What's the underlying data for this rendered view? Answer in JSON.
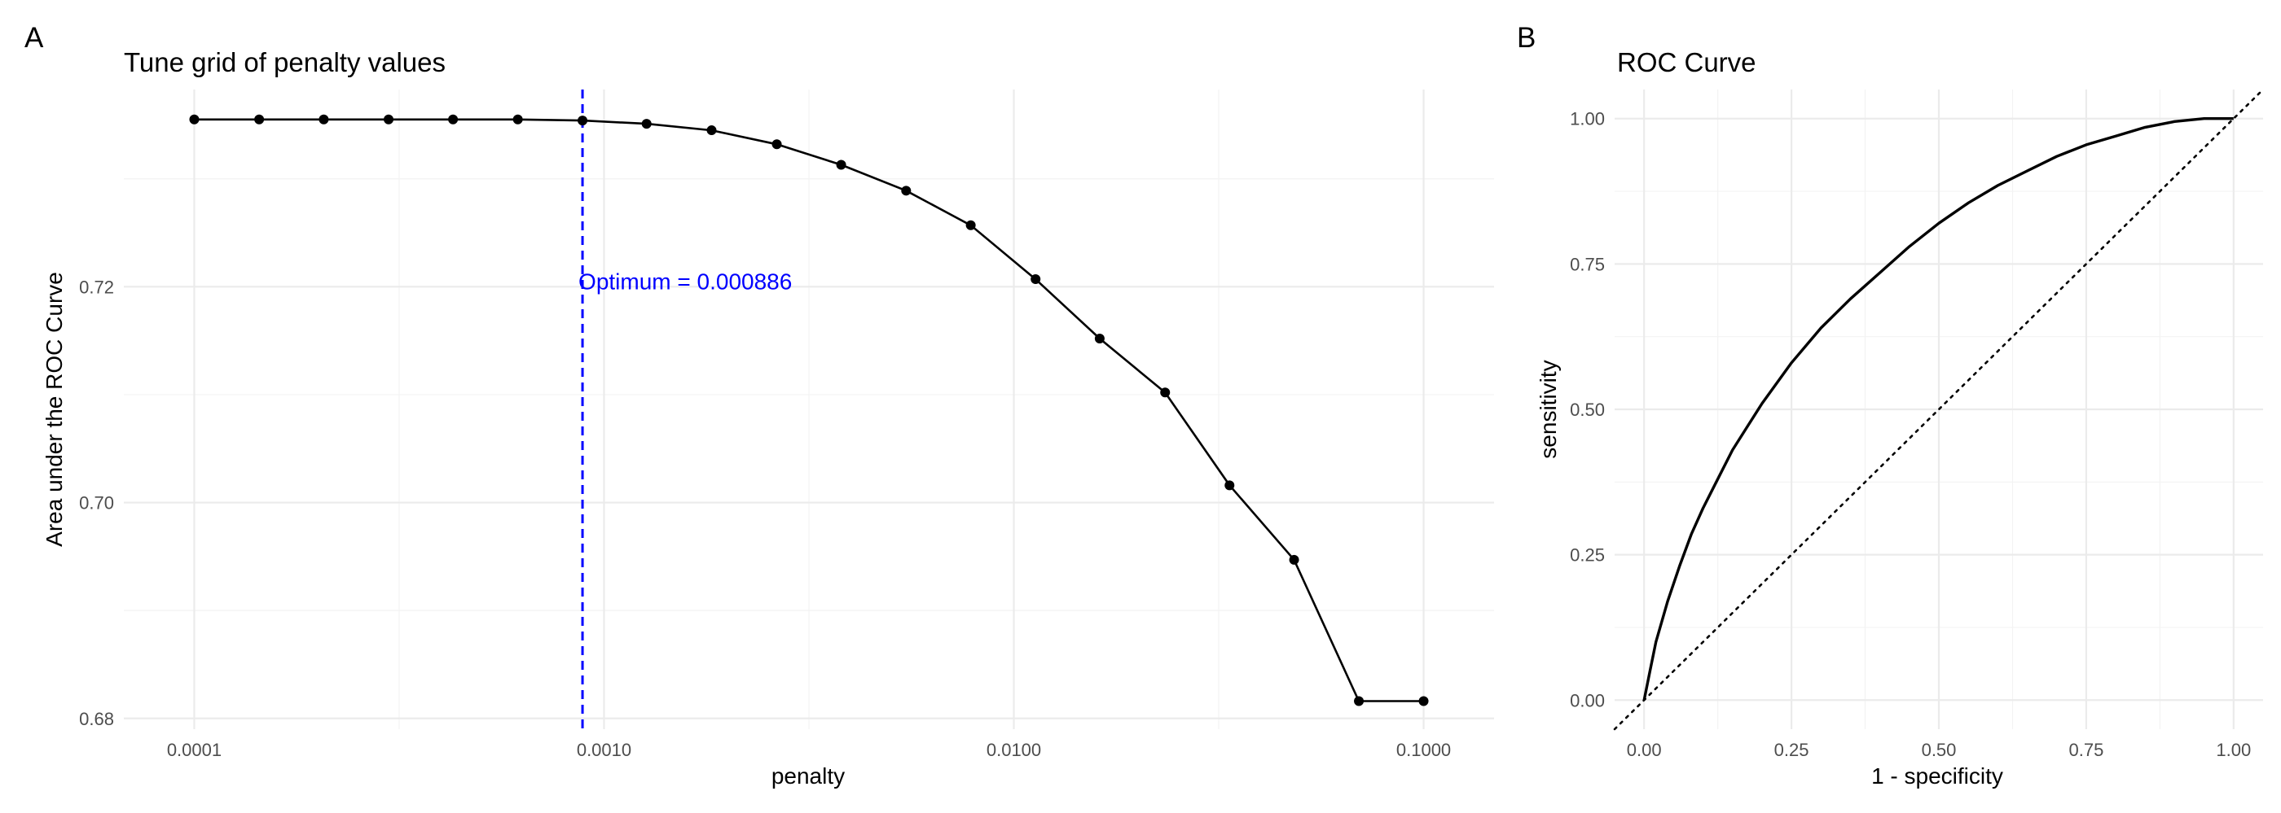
{
  "chart_data": [
    {
      "type": "line",
      "panel_tag": "A",
      "title": "Tune grid of penalty values",
      "xlabel": "penalty",
      "ylabel": "Area under the ROC Curve",
      "x_scale": "log10",
      "xlim": [
        0.0001,
        0.1
      ],
      "ylim": [
        0.68,
        0.7355
      ],
      "x_ticks": [
        0.0001,
        0.001,
        0.01,
        0.1
      ],
      "x_tick_labels": [
        "0.0001",
        "0.0010",
        "0.0100",
        "0.1000"
      ],
      "y_ticks": [
        0.68,
        0.7,
        0.72
      ],
      "y_tick_labels": [
        "0.68",
        "0.70",
        "0.72"
      ],
      "grid": true,
      "series": [
        {
          "x": [
            0.0001,
            0.000144,
            0.000207,
            0.000298,
            0.000428,
            0.000616,
            0.000886,
            0.00127,
            0.00183,
            0.00264,
            0.00379,
            0.00546,
            0.00785,
            0.0113,
            0.0162,
            0.0234,
            0.0336,
            0.0483,
            0.0695,
            0.1
          ],
          "y": [
            0.7355,
            0.7355,
            0.7355,
            0.7355,
            0.7355,
            0.7355,
            0.7354,
            0.7351,
            0.7345,
            0.7332,
            0.7313,
            0.7289,
            0.7257,
            0.7207,
            0.7152,
            0.7102,
            0.7016,
            0.6947,
            0.6816,
            0.6816
          ],
          "color": "#000000"
        }
      ],
      "vline": {
        "x": 0.000886,
        "color": "#0000ff",
        "style": "dashed"
      },
      "annotation": {
        "text": "Optimum = 0.000886",
        "x": 0.000886,
        "y": 0.7205,
        "color": "#0000ff"
      }
    },
    {
      "type": "line",
      "panel_tag": "B",
      "title": "ROC Curve",
      "xlabel": "1 - specificity",
      "ylabel": "sensitivity",
      "xlim": [
        -0.05,
        1.05
      ],
      "ylim": [
        -0.05,
        1.05
      ],
      "x_ticks": [
        0.0,
        0.25,
        0.5,
        0.75,
        1.0
      ],
      "x_tick_labels": [
        "0.00",
        "0.25",
        "0.50",
        "0.75",
        "1.00"
      ],
      "y_ticks": [
        0.0,
        0.25,
        0.5,
        0.75,
        1.0
      ],
      "y_tick_labels": [
        "0.00",
        "0.25",
        "0.50",
        "0.75",
        "1.00"
      ],
      "grid": true,
      "series": [
        {
          "x": [
            0.0,
            0.01,
            0.02,
            0.04,
            0.06,
            0.08,
            0.1,
            0.125,
            0.15,
            0.175,
            0.2,
            0.25,
            0.3,
            0.35,
            0.4,
            0.45,
            0.5,
            0.55,
            0.6,
            0.65,
            0.7,
            0.75,
            0.8,
            0.85,
            0.9,
            0.95,
            1.0
          ],
          "y": [
            0.0,
            0.05,
            0.1,
            0.17,
            0.23,
            0.285,
            0.33,
            0.38,
            0.43,
            0.47,
            0.51,
            0.58,
            0.64,
            0.69,
            0.735,
            0.78,
            0.82,
            0.855,
            0.885,
            0.91,
            0.935,
            0.955,
            0.97,
            0.985,
            0.995,
            1.0,
            1.0
          ],
          "color": "#000000"
        }
      ],
      "reference_line": {
        "from": [
          -0.05,
          -0.05
        ],
        "to": [
          1.05,
          1.05
        ],
        "style": "dotted",
        "color": "#000000"
      }
    }
  ]
}
